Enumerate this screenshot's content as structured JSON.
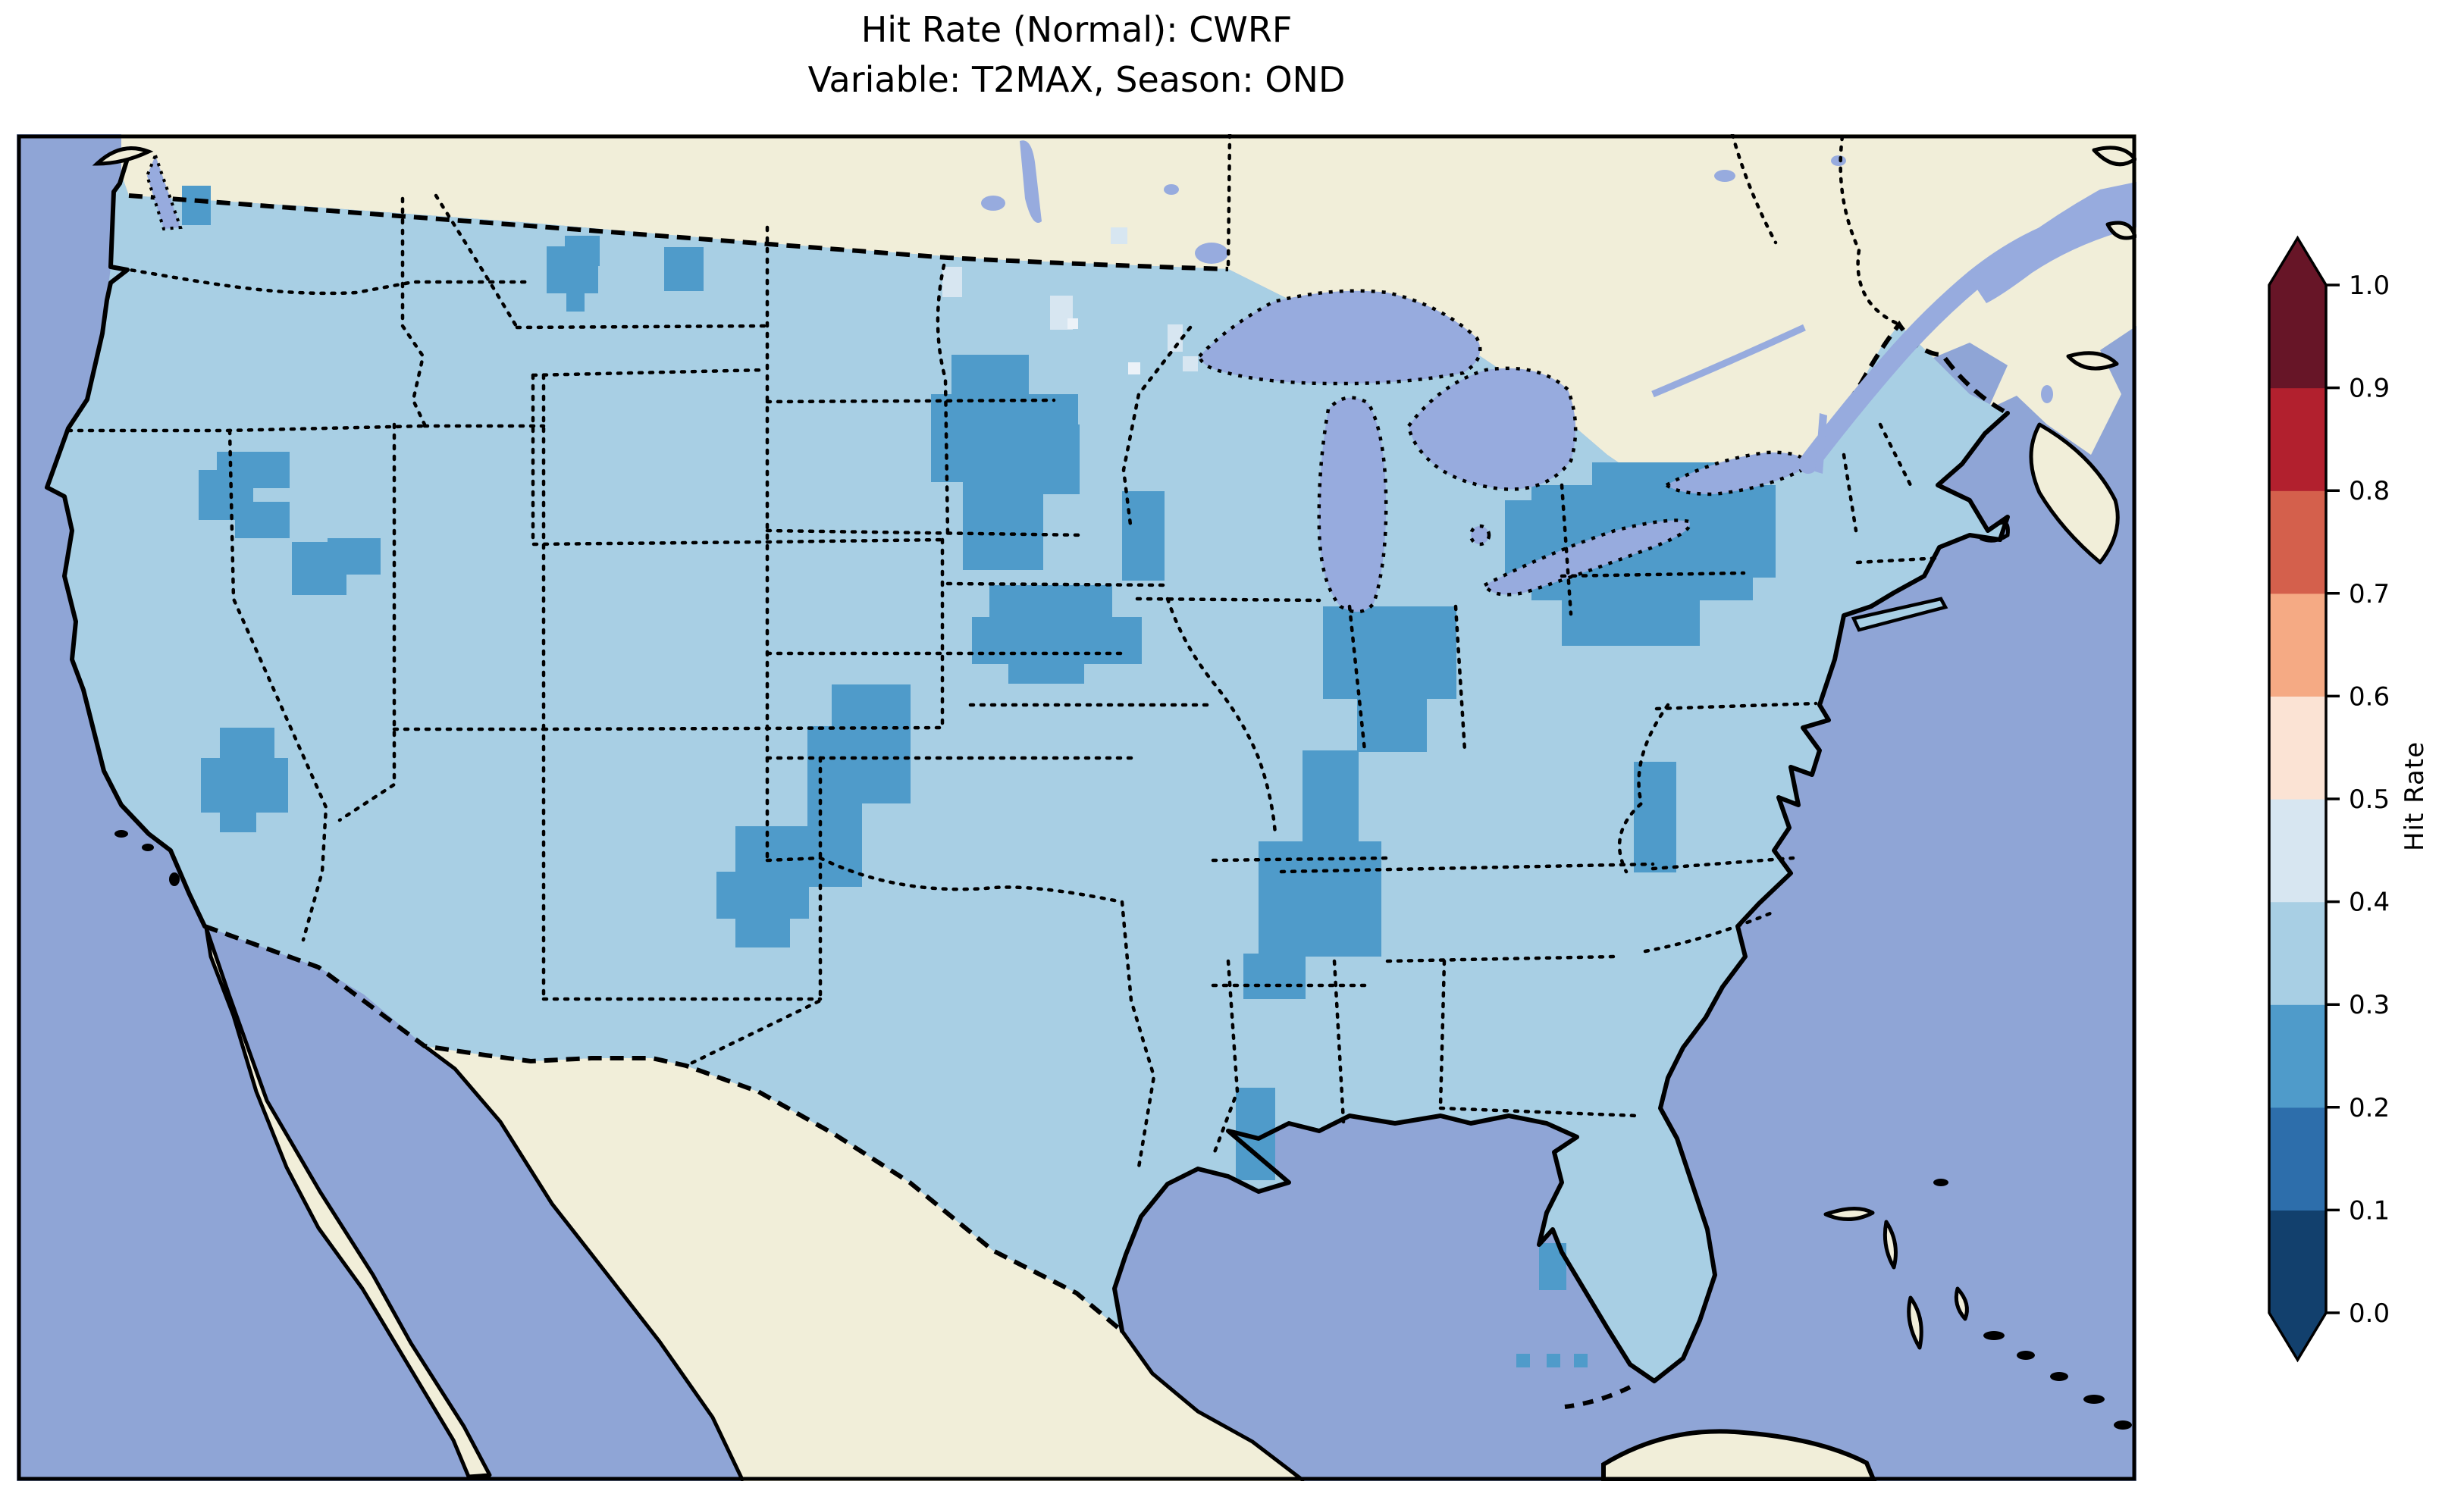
{
  "title": {
    "line1": "Hit Rate (Normal): CWRF",
    "line2": "Variable: T2MAX, Season: OND"
  },
  "colorbar": {
    "label": "Hit Rate",
    "ticks_top_to_bottom": [
      "1.0",
      "0.9",
      "0.8",
      "0.7",
      "0.6",
      "0.5",
      "0.4",
      "0.3",
      "0.2",
      "0.1",
      "0.0"
    ],
    "band_colors_bottom_to_top": [
      "#12406d",
      "#2d6eab",
      "#4f9bca",
      "#a8cfe4",
      "#d7e6f1",
      "#fbe3d4",
      "#f5aa84",
      "#d4604c",
      "#b2202e",
      "#671527"
    ],
    "extend": "both"
  },
  "colors": {
    "ocean": "#8fa5d6",
    "lakes": "#97abde",
    "other_land": "#f1eed9",
    "us_base_band": "#a8cfe4",
    "low_band": "#4f9bca",
    "light_cell": "#d7e6f1",
    "lighter_cell": "#ecf2f8",
    "coastline": "#000000",
    "frame": "#000000"
  },
  "map_patches": {
    "low_band_rects": [
      [
        240,
        245,
        38,
        52
      ],
      [
        262,
        620,
        72,
        66
      ],
      [
        286,
        596,
        96,
        48
      ],
      [
        310,
        662,
        72,
        48
      ],
      [
        385,
        715,
        72,
        70
      ],
      [
        432,
        710,
        70,
        48
      ],
      [
        290,
        960,
        72,
        42
      ],
      [
        265,
        1000,
        115,
        72
      ],
      [
        290,
        1068,
        48,
        30
      ],
      [
        721,
        325,
        68,
        62
      ],
      [
        745,
        311,
        46,
        40
      ],
      [
        747,
        385,
        24,
        26
      ],
      [
        876,
        326,
        52,
        58
      ],
      [
        1305,
        772,
        162,
        44
      ],
      [
        1282,
        814,
        224,
        62
      ],
      [
        1330,
        874,
        100,
        28
      ],
      [
        1097,
        903,
        104,
        60
      ],
      [
        1065,
        958,
        136,
        102
      ],
      [
        1065,
        1058,
        72,
        112
      ],
      [
        970,
        1090,
        96,
        62
      ],
      [
        945,
        1150,
        122,
        62
      ],
      [
        970,
        1210,
        72,
        40
      ],
      [
        1255,
        468,
        102,
        76
      ],
      [
        1228,
        520,
        194,
        116
      ],
      [
        1270,
        634,
        106,
        118
      ],
      [
        1352,
        560,
        72,
        92
      ],
      [
        1480,
        648,
        56,
        118
      ],
      [
        1745,
        800,
        176,
        122
      ],
      [
        1790,
        920,
        92,
        72
      ],
      [
        1718,
        990,
        74,
        122
      ],
      [
        1660,
        1110,
        162,
        152
      ],
      [
        1640,
        1258,
        82,
        60
      ],
      [
        1630,
        1435,
        52,
        122
      ],
      [
        2155,
        1005,
        56,
        146
      ],
      [
        1985,
        660,
        62,
        104
      ],
      [
        2020,
        640,
        292,
        152
      ],
      [
        2100,
        610,
        162,
        62
      ],
      [
        2060,
        790,
        182,
        62
      ],
      [
        2250,
        640,
        92,
        122
      ],
      [
        2030,
        1640,
        36,
        62
      ],
      [
        2000,
        1786,
        18,
        18
      ],
      [
        2040,
        1786,
        18,
        18
      ],
      [
        2076,
        1786,
        18,
        18
      ]
    ],
    "light_cell_rects": [
      [
        1385,
        390,
        30,
        45
      ],
      [
        1540,
        428,
        20,
        36
      ],
      [
        1465,
        300,
        22,
        22
      ],
      [
        1560,
        470,
        20,
        20
      ],
      [
        1243,
        352,
        26,
        40
      ]
    ],
    "lighter_cell_rects": [
      [
        1488,
        478,
        16,
        16
      ],
      [
        1408,
        420,
        14,
        14
      ]
    ]
  },
  "chart_data": {
    "type": "heatmap",
    "title": "Hit Rate (Normal): CWRF",
    "subtitle": "Variable: T2MAX, Season: OND",
    "model": "CWRF",
    "variable": "T2MAX",
    "season": "OND",
    "metric": "Hit Rate",
    "colorbar": {
      "label": "Hit Rate",
      "range": [
        0.0,
        1.0
      ],
      "tick_interval": 0.1,
      "colormap": "RdBu reversed, 10 discrete bands",
      "extend": "both",
      "band_edges": [
        0.0,
        0.1,
        0.2,
        0.3,
        0.4,
        0.5,
        0.6,
        0.7,
        0.8,
        0.9,
        1.0
      ]
    },
    "map": {
      "region": "Contiguous United States (Lambert Conformal projection, gridded ~0.3 deg cells)",
      "dominant_value_band": [
        0.3,
        0.4
      ],
      "secondary_value_band": [
        0.2,
        0.3
      ],
      "low_hit_rate_areas_0p2_to_0p3": [
        "western Washington (Puget Sound cells)",
        "eastern Oregon",
        "southeastern Oregon / southwestern Idaho",
        "southern Nevada",
        "western Montana (two small patches)",
        "Nebraska - South Dakota border",
        "eastern Colorado / western Kansas strip",
        "northeastern New Mexico",
        "central and southern Minnesota into western Wisconsin (largest western patch)",
        "southeastern Wisconsin / northern Illinois",
        "Indiana extending down the lower Mississippi valley (Missouri - Arkansas)",
        "central Mississippi",
        "western Virginia / West Virginia",
        "eastern Ohio - Pennsylvania - New York - southern New England (largest eastern patch)",
        "Tampa Bay area and far southern Florida cells"
      ],
      "higher_band_cells_0p4_to_0p5": "a few scattered cells near the Minnesota - North Dakota border and Minneapolis area",
      "non_us_land": "masked (beige) in Canada, Mexico, Bahamas, Cuba",
      "water": "ocean and Great Lakes shown in light periwinkle blue"
    }
  }
}
